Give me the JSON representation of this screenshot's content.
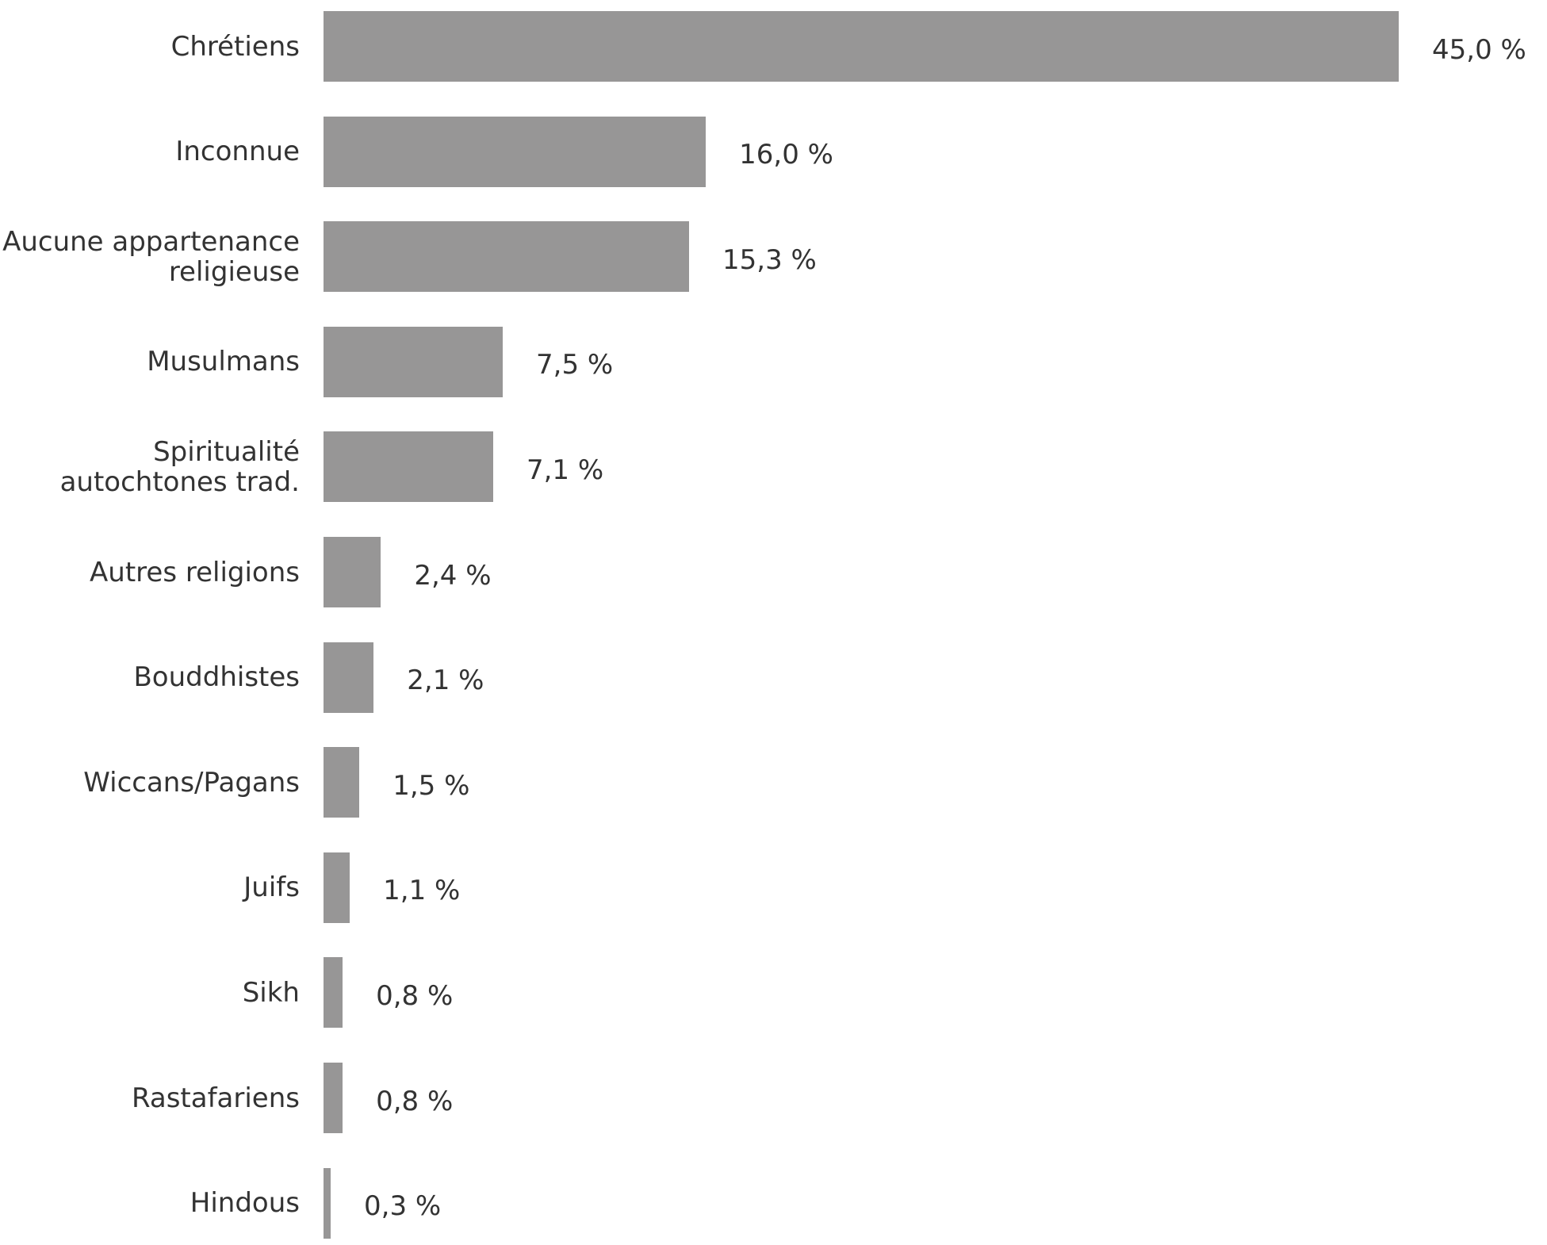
{
  "chart_data": {
    "type": "bar",
    "orientation": "horizontal",
    "color": "#979696",
    "categories": [
      "Chrétiens",
      "Inconnue",
      "Aucune appartenance\nreligieuse",
      "Musulmans",
      "Spiritualité\nautochtones trad.",
      "Autres religions",
      "Bouddhistes",
      "Wiccans/Pagans",
      "Juifs",
      "Sikh",
      "Rastafariens",
      "Hindous"
    ],
    "values": [
      45.0,
      16.0,
      15.3,
      7.5,
      7.1,
      2.4,
      2.1,
      1.5,
      1.1,
      0.8,
      0.8,
      0.3
    ],
    "value_labels": [
      "45,0 %",
      "16,0 %",
      "15,3 %",
      "7,5 %",
      "7,1 %",
      "2,4 %",
      "2,1 %",
      "1,5 %",
      "1,1 %",
      "0,8 %",
      "0,8 %",
      "0,3 %"
    ]
  }
}
